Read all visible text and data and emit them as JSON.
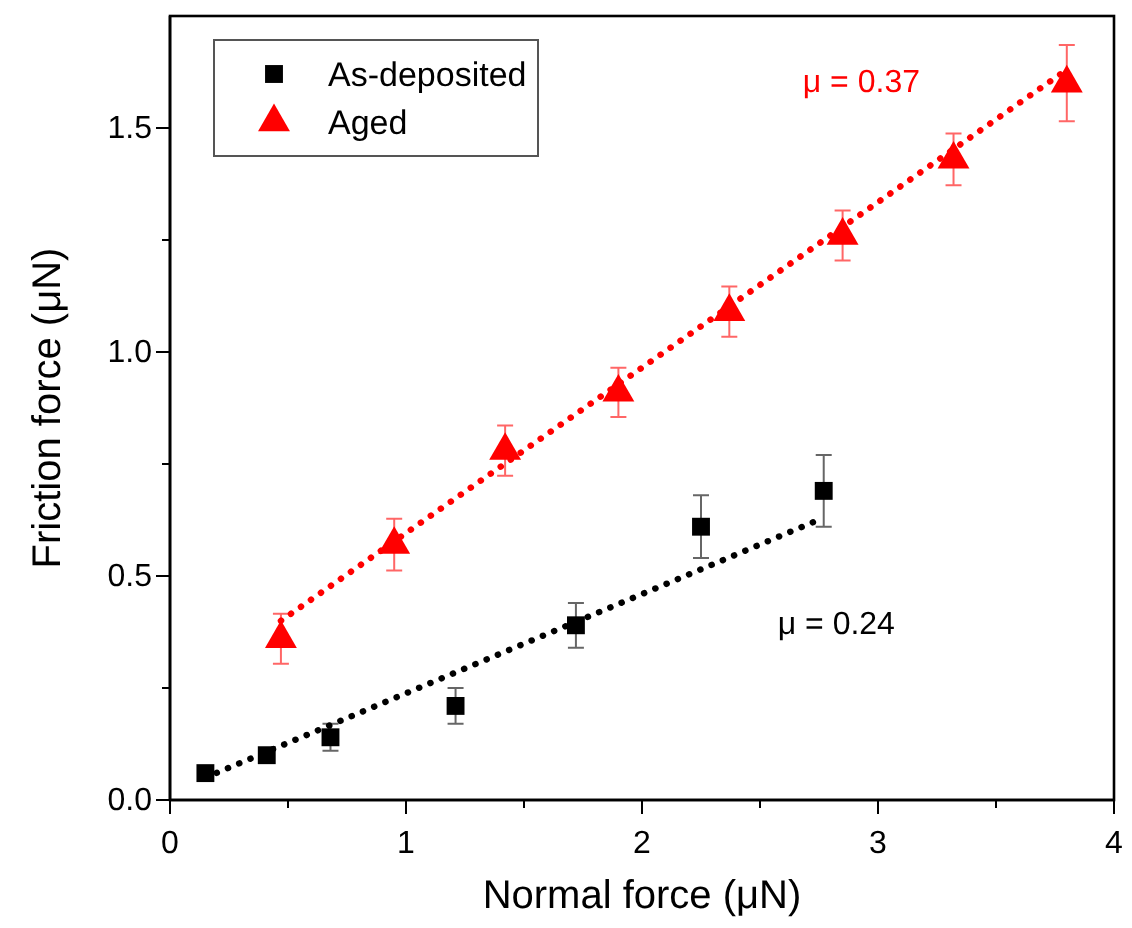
{
  "chart_data": {
    "type": "scatter",
    "xlabel": "Normal force (μN)",
    "ylabel": "Friction force (μN)",
    "xlim": [
      0,
      4
    ],
    "ylim": [
      0,
      1.75
    ],
    "xticks": [
      0,
      {
        "value": 0.5,
        "label": null
      },
      1,
      {
        "value": 1.5,
        "label": null
      },
      2,
      {
        "value": 2.5,
        "label": null
      },
      3,
      {
        "value": 3.5,
        "label": null
      },
      4
    ],
    "yticks": [
      {
        "value": 0,
        "label": "0.0"
      },
      {
        "value": 0.25,
        "label": null
      },
      0.5,
      {
        "value": 0.75,
        "label": null
      },
      {
        "value": 1,
        "label": "1.0"
      },
      {
        "value": 1.25,
        "label": null
      },
      1.5
    ],
    "legend": "top left",
    "grid": false,
    "series": [
      {
        "name": "As-deposited",
        "color": "#000000",
        "marker": "square",
        "x": [
          0.15,
          0.41,
          0.68,
          1.21,
          1.72,
          2.25,
          2.77
        ],
        "values": [
          0.06,
          0.1,
          0.14,
          0.21,
          0.39,
          0.61,
          0.69
        ],
        "errors": [
          null,
          null,
          0.03,
          0.04,
          0.05,
          0.07,
          0.08
        ]
      },
      {
        "name": "Aged",
        "color": "#ff0000",
        "marker": "triangle",
        "x": [
          0.47,
          0.95,
          1.42,
          1.9,
          2.37,
          2.85,
          3.32,
          3.8
        ],
        "values": [
          0.36,
          0.57,
          0.78,
          0.91,
          1.09,
          1.26,
          1.43,
          1.6
        ],
        "errors": [
          0.056,
          0.058,
          0.056,
          0.055,
          0.056,
          0.056,
          0.058,
          0.085
        ]
      },
      {
        "type": "line",
        "color": "#000000",
        "line_style": "dotted",
        "marker": "none",
        "x": [
          0.15,
          2.77
        ],
        "values": [
          0.05,
          0.63
        ]
      },
      {
        "type": "line",
        "color": "#ff0000",
        "line_style": "dotted",
        "marker": "none",
        "x": [
          0.47,
          3.8
        ],
        "values": [
          0.4,
          1.63
        ]
      }
    ],
    "annotations": [
      "μ = 0.24",
      "μ = 0.37"
    ]
  }
}
